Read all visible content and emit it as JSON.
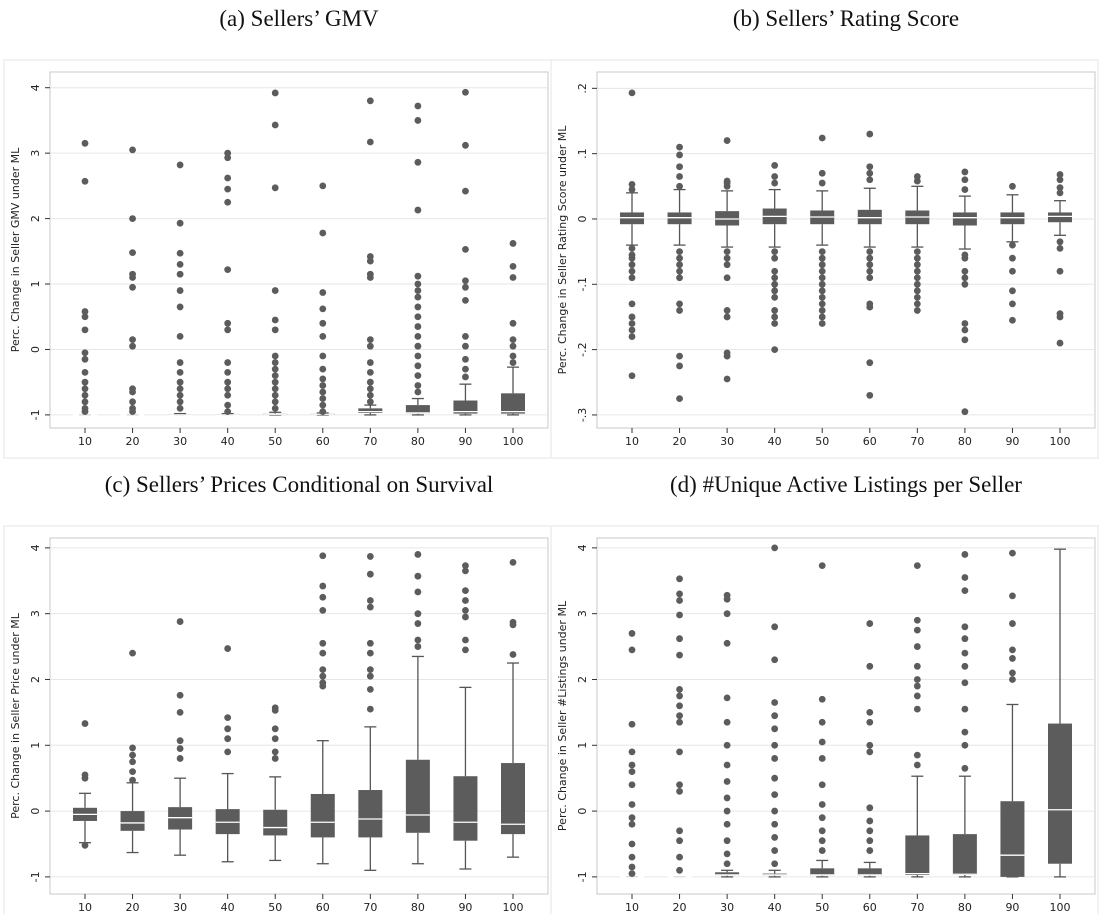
{
  "chart_data": [
    {
      "type": "box",
      "title": "(a) Sellers’ GMV",
      "y_label": "Perc. Change in Seller GMV under ML",
      "categories": [
        "10",
        "20",
        "30",
        "40",
        "50",
        "60",
        "70",
        "80",
        "90",
        "100"
      ],
      "ylim": [
        -1.2,
        4.24
      ],
      "yticks": [
        -1,
        0,
        1,
        2,
        3,
        4
      ],
      "grid": true,
      "color": "#5c5c5c",
      "median_color": "#ffffff",
      "boxes": [
        {
          "whisker_low": -1,
          "q1": -1,
          "median": -1,
          "q3": -1,
          "whisker_high": -1,
          "outliers": [
            3.15,
            2.57,
            0.58,
            0.5,
            0.3,
            -0.05,
            -0.15,
            -0.35,
            -0.5,
            -0.6,
            -0.7,
            -0.8,
            -0.9,
            -0.95
          ]
        },
        {
          "whisker_low": -1,
          "q1": -1,
          "median": -1,
          "q3": -1,
          "whisker_high": -1,
          "outliers": [
            3.05,
            2.0,
            1.48,
            1.15,
            1.1,
            0.95,
            0.15,
            0.05,
            -0.6,
            -0.65,
            -0.8,
            -0.9,
            -0.95
          ]
        },
        {
          "whisker_low": -1,
          "q1": -1,
          "median": -1,
          "q3": -0.99,
          "whisker_high": -0.98,
          "outliers": [
            2.82,
            1.93,
            1.47,
            1.3,
            1.15,
            0.9,
            0.65,
            0.2,
            -0.2,
            -0.35,
            -0.5,
            -0.6,
            -0.7,
            -0.8,
            -0.9
          ]
        },
        {
          "whisker_low": -1,
          "q1": -1,
          "median": -1,
          "q3": -0.99,
          "whisker_high": -0.98,
          "outliers": [
            3.0,
            2.93,
            2.62,
            2.45,
            2.25,
            1.22,
            0.4,
            0.3,
            -0.2,
            -0.35,
            -0.5,
            -0.6,
            -0.7,
            -0.85,
            -0.95
          ]
        },
        {
          "whisker_low": -1,
          "q1": -1,
          "median": -0.99,
          "q3": -0.98,
          "whisker_high": -0.96,
          "outliers": [
            3.92,
            3.43,
            2.47,
            0.9,
            0.45,
            0.3,
            -0.1,
            -0.2,
            -0.3,
            -0.4,
            -0.5,
            -0.6,
            -0.7,
            -0.8,
            -0.9
          ]
        },
        {
          "whisker_low": -1,
          "q1": -1,
          "median": -0.99,
          "q3": -0.98,
          "whisker_high": -0.97,
          "outliers": [
            2.5,
            1.78,
            0.87,
            0.62,
            0.4,
            0.2,
            -0.1,
            -0.3,
            -0.45,
            -0.55,
            -0.65,
            -0.75,
            -0.85,
            -0.95
          ]
        },
        {
          "whisker_low": -1,
          "q1": -0.97,
          "median": -0.95,
          "q3": -0.9,
          "whisker_high": -0.85,
          "outliers": [
            3.8,
            3.17,
            1.42,
            1.35,
            1.15,
            1.1,
            0.15,
            0.05,
            -0.2,
            -0.35,
            -0.5,
            -0.6,
            -0.7,
            -0.8
          ]
        },
        {
          "whisker_low": -1,
          "q1": -0.98,
          "median": -0.97,
          "q3": -0.85,
          "whisker_high": -0.75,
          "outliers": [
            3.72,
            3.5,
            2.86,
            2.13,
            1.12,
            1.0,
            0.9,
            0.8,
            0.65,
            0.5,
            0.35,
            0.2,
            0.05,
            -0.1,
            -0.25,
            -0.4,
            -0.55,
            -0.65
          ]
        },
        {
          "whisker_low": -1,
          "q1": -0.98,
          "median": -0.95,
          "q3": -0.78,
          "whisker_high": -0.53,
          "outliers": [
            3.93,
            3.12,
            2.42,
            1.53,
            1.05,
            0.95,
            0.75,
            0.2,
            0.05,
            -0.15,
            -0.3,
            -0.42
          ]
        },
        {
          "whisker_low": -1,
          "q1": -0.98,
          "median": -0.95,
          "q3": -0.67,
          "whisker_high": -0.27,
          "outliers": [
            1.62,
            1.27,
            1.1,
            0.4,
            0.15,
            0.05,
            -0.1,
            -0.2
          ]
        }
      ]
    },
    {
      "type": "box",
      "title": "(b) Sellers’ Rating Score",
      "y_label": "Perc. Change in Seller Rating Score under ML",
      "categories": [
        "10",
        "20",
        "30",
        "40",
        "50",
        "60",
        "70",
        "80",
        "90",
        "100"
      ],
      "ylim": [
        -0.32,
        0.225
      ],
      "yticks": [
        {
          "value": -0.3,
          "label": "-.3"
        },
        {
          "value": -0.2,
          "label": "-.2"
        },
        {
          "value": -0.1,
          "label": "-.1"
        },
        0,
        {
          "value": 0.1,
          "label": ".1"
        },
        {
          "value": 0.2,
          "label": ".2"
        }
      ],
      "grid": true,
      "color": "#5c5c5c",
      "median_color": "#ffffff",
      "boxes": [
        {
          "whisker_low": -0.04,
          "q1": -0.008,
          "median": 0.002,
          "q3": 0.01,
          "whisker_high": 0.04,
          "outliers": [
            0.193,
            0.053,
            0.045,
            -0.045,
            -0.055,
            -0.06,
            -0.07,
            -0.08,
            -0.09,
            -0.13,
            -0.15,
            -0.16,
            -0.17,
            -0.18,
            -0.24
          ]
        },
        {
          "whisker_low": -0.04,
          "q1": -0.008,
          "median": 0.002,
          "q3": 0.01,
          "whisker_high": 0.045,
          "outliers": [
            0.11,
            0.098,
            0.08,
            0.065,
            0.05,
            -0.05,
            -0.06,
            -0.07,
            -0.08,
            -0.09,
            -0.13,
            -0.14,
            -0.21,
            -0.225,
            -0.275
          ]
        },
        {
          "whisker_low": -0.043,
          "q1": -0.01,
          "median": 0,
          "q3": 0.012,
          "whisker_high": 0.043,
          "outliers": [
            0.12,
            0.058,
            0.055,
            0.05,
            -0.05,
            -0.06,
            -0.07,
            -0.09,
            -0.14,
            -0.15,
            -0.205,
            -0.21,
            -0.245
          ]
        },
        {
          "whisker_low": -0.043,
          "q1": -0.008,
          "median": 0.004,
          "q3": 0.016,
          "whisker_high": 0.045,
          "outliers": [
            0.082,
            0.065,
            0.055,
            -0.05,
            -0.06,
            -0.08,
            -0.09,
            -0.1,
            -0.11,
            -0.12,
            -0.14,
            -0.15,
            -0.16,
            -0.2
          ]
        },
        {
          "whisker_low": -0.04,
          "q1": -0.008,
          "median": 0.003,
          "q3": 0.013,
          "whisker_high": 0.043,
          "outliers": [
            0.124,
            0.07,
            0.055,
            -0.05,
            -0.06,
            -0.07,
            -0.08,
            -0.09,
            -0.1,
            -0.11,
            -0.12,
            -0.13,
            -0.14,
            -0.15,
            -0.16
          ]
        },
        {
          "whisker_low": -0.043,
          "q1": -0.008,
          "median": 0.002,
          "q3": 0.014,
          "whisker_high": 0.047,
          "outliers": [
            0.13,
            0.08,
            0.07,
            0.06,
            -0.05,
            -0.06,
            -0.07,
            -0.08,
            -0.09,
            -0.13,
            -0.135,
            -0.22,
            -0.27
          ]
        },
        {
          "whisker_low": -0.043,
          "q1": -0.008,
          "median": 0.003,
          "q3": 0.013,
          "whisker_high": 0.05,
          "outliers": [
            0.065,
            0.058,
            -0.05,
            -0.06,
            -0.07,
            -0.08,
            -0.09,
            -0.1,
            -0.11,
            -0.12,
            -0.13,
            -0.14
          ]
        },
        {
          "whisker_low": -0.046,
          "q1": -0.01,
          "median": 0.002,
          "q3": 0.01,
          "whisker_high": 0.035,
          "outliers": [
            0.072,
            0.06,
            0.045,
            -0.055,
            -0.06,
            -0.08,
            -0.09,
            -0.1,
            -0.16,
            -0.17,
            -0.185,
            -0.295
          ]
        },
        {
          "whisker_low": -0.035,
          "q1": -0.008,
          "median": 0.002,
          "q3": 0.01,
          "whisker_high": 0.037,
          "outliers": [
            0.05,
            -0.04,
            -0.06,
            -0.08,
            -0.11,
            -0.13,
            -0.155
          ]
        },
        {
          "whisker_low": -0.025,
          "q1": -0.005,
          "median": 0.004,
          "q3": 0.01,
          "whisker_high": 0.028,
          "outliers": [
            0.068,
            0.06,
            0.048,
            0.04,
            -0.035,
            -0.045,
            -0.08,
            -0.145,
            -0.15,
            -0.19
          ]
        }
      ]
    },
    {
      "type": "box",
      "title": "(c) Sellers’ Prices Conditional on Survival",
      "y_label": "Perc. Change in Seller Price under ML",
      "categories": [
        "10",
        "20",
        "30",
        "40",
        "50",
        "60",
        "70",
        "80",
        "90",
        "100"
      ],
      "ylim": [
        -1.26,
        4.15
      ],
      "yticks": [
        -1,
        0,
        1,
        2,
        3,
        4
      ],
      "grid": true,
      "color": "#5c5c5c",
      "median_color": "#ffffff",
      "boxes": [
        {
          "whisker_low": -0.48,
          "q1": -0.15,
          "median": -0.05,
          "q3": 0.05,
          "whisker_high": 0.27,
          "outliers": [
            1.33,
            0.55,
            0.5,
            -0.52
          ]
        },
        {
          "whisker_low": -0.63,
          "q1": -0.3,
          "median": -0.18,
          "q3": 0,
          "whisker_high": 0.43,
          "outliers": [
            2.4,
            0.96,
            0.85,
            0.75,
            0.6,
            0.47
          ]
        },
        {
          "whisker_low": -0.67,
          "q1": -0.28,
          "median": -0.1,
          "q3": 0.06,
          "whisker_high": 0.5,
          "outliers": [
            2.88,
            1.76,
            1.5,
            1.07,
            0.95,
            0.8
          ]
        },
        {
          "whisker_low": -0.77,
          "q1": -0.35,
          "median": -0.17,
          "q3": 0.03,
          "whisker_high": 0.57,
          "outliers": [
            2.47,
            1.42,
            1.25,
            1.1,
            0.9
          ]
        },
        {
          "whisker_low": -0.75,
          "q1": -0.37,
          "median": -0.25,
          "q3": 0.02,
          "whisker_high": 0.52,
          "outliers": [
            1.57,
            1.53,
            1.25,
            1.1,
            0.9,
            0.8
          ]
        },
        {
          "whisker_low": -0.8,
          "q1": -0.4,
          "median": -0.17,
          "q3": 0.26,
          "whisker_high": 1.07,
          "outliers": [
            3.88,
            3.42,
            3.25,
            3.05,
            2.55,
            2.4,
            2.15,
            2.05,
            1.95,
            1.9
          ]
        },
        {
          "whisker_low": -0.9,
          "q1": -0.4,
          "median": -0.12,
          "q3": 0.32,
          "whisker_high": 1.28,
          "outliers": [
            3.87,
            3.6,
            3.2,
            3.1,
            2.55,
            2.4,
            2.15,
            2.05,
            1.85,
            1.55
          ]
        },
        {
          "whisker_low": -0.8,
          "q1": -0.33,
          "median": -0.06,
          "q3": 0.78,
          "whisker_high": 2.35,
          "outliers": [
            3.9,
            3.57,
            3.33,
            3.0,
            2.85,
            2.6,
            2.5
          ]
        },
        {
          "whisker_low": -0.88,
          "q1": -0.45,
          "median": -0.17,
          "q3": 0.53,
          "whisker_high": 1.88,
          "outliers": [
            3.73,
            3.65,
            3.35,
            3.2,
            3.05,
            2.95,
            2.6,
            2.45
          ]
        },
        {
          "whisker_low": -0.7,
          "q1": -0.35,
          "median": -0.2,
          "q3": 0.73,
          "whisker_high": 2.25,
          "outliers": [
            3.78,
            2.87,
            2.83,
            2.38
          ]
        }
      ]
    },
    {
      "type": "box",
      "title": "(d) #Unique Active Listings per Seller",
      "y_label": "Perc. Change in Seller #Listings under ML",
      "categories": [
        "10",
        "20",
        "30",
        "40",
        "50",
        "60",
        "70",
        "80",
        "90",
        "100"
      ],
      "ylim": [
        -1.26,
        4.15
      ],
      "yticks": [
        -1,
        0,
        1,
        2,
        3,
        4
      ],
      "grid": true,
      "color": "#5c5c5c",
      "median_color": "#ffffff",
      "boxes": [
        {
          "whisker_low": -1,
          "q1": -1,
          "median": -1,
          "q3": -1,
          "whisker_high": -1,
          "outliers": [
            2.7,
            2.45,
            1.32,
            0.9,
            0.7,
            0.6,
            0.4,
            0.1,
            -0.1,
            -0.2,
            -0.5,
            -0.7,
            -0.85,
            -0.95
          ]
        },
        {
          "whisker_low": -1,
          "q1": -1,
          "median": -1,
          "q3": -1,
          "whisker_high": -1,
          "outliers": [
            3.53,
            3.3,
            3.2,
            2.98,
            2.62,
            2.37,
            1.85,
            1.75,
            1.6,
            1.45,
            1.35,
            0.9,
            0.4,
            0.3,
            -0.3,
            -0.45,
            -0.7,
            -0.9
          ]
        },
        {
          "whisker_low": -1,
          "q1": -0.98,
          "median": -0.97,
          "q3": -0.93,
          "whisker_high": -0.9,
          "outliers": [
            3.28,
            3.22,
            3.0,
            2.55,
            1.72,
            1.35,
            1.0,
            0.7,
            0.45,
            0.2,
            0,
            -0.2,
            -0.45,
            -0.65,
            -0.8
          ]
        },
        {
          "whisker_low": -1,
          "q1": -0.98,
          "median": -0.97,
          "q3": -0.95,
          "whisker_high": -0.9,
          "outliers": [
            4.0,
            2.8,
            2.3,
            1.65,
            1.45,
            1.25,
            1.0,
            0.8,
            0.5,
            0.25,
            0,
            -0.2,
            -0.4,
            -0.6,
            -0.8
          ]
        },
        {
          "whisker_low": -1,
          "q1": -0.98,
          "median": -0.97,
          "q3": -0.87,
          "whisker_high": -0.75,
          "outliers": [
            3.73,
            1.7,
            1.35,
            1.05,
            0.8,
            0.4,
            0.1,
            -0.1,
            -0.3,
            -0.45,
            -0.6
          ]
        },
        {
          "whisker_low": -1,
          "q1": -0.98,
          "median": -0.97,
          "q3": -0.87,
          "whisker_high": -0.78,
          "outliers": [
            2.85,
            2.2,
            1.5,
            1.35,
            1.0,
            0.9,
            0.05,
            -0.15,
            -0.3,
            -0.45,
            -0.6
          ]
        },
        {
          "whisker_low": -1,
          "q1": -0.97,
          "median": -0.95,
          "q3": -0.37,
          "whisker_high": 0.53,
          "outliers": [
            3.73,
            2.9,
            2.75,
            2.5,
            2.2,
            2.0,
            1.9,
            1.75,
            1.55,
            0.85,
            0.7
          ]
        },
        {
          "whisker_low": -1,
          "q1": -0.97,
          "median": -0.96,
          "q3": -0.35,
          "whisker_high": 0.53,
          "outliers": [
            3.9,
            3.55,
            3.35,
            2.8,
            2.62,
            2.4,
            2.2,
            1.95,
            1.55,
            1.2,
            1.0,
            0.65
          ]
        },
        {
          "whisker_low": -1,
          "q1": -1,
          "median": -0.67,
          "q3": 0.15,
          "whisker_high": 1.62,
          "outliers": [
            3.92,
            3.27,
            2.85,
            2.45,
            2.32,
            2.1,
            2.0
          ]
        },
        {
          "whisker_low": -1,
          "q1": -0.8,
          "median": 0.02,
          "q3": 1.33,
          "whisker_high": 3.98,
          "outliers": []
        }
      ]
    }
  ]
}
